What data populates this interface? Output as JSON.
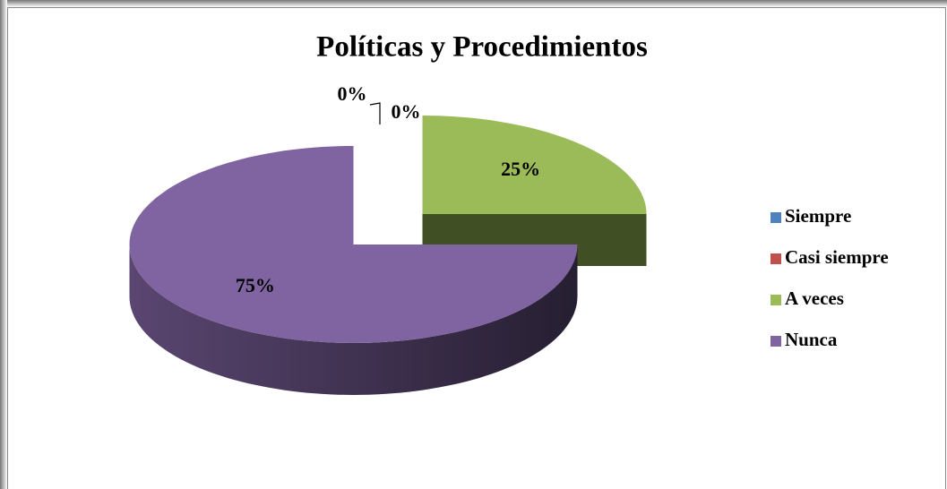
{
  "chart_data": {
    "type": "pie",
    "title": "Políticas y Procedimientos",
    "categories": [
      "Siempre",
      "Casi siempre",
      "A veces",
      "Nunca"
    ],
    "values": [
      0,
      0,
      25,
      75
    ],
    "value_labels": [
      "0%",
      "0%",
      "25%",
      "75%"
    ],
    "colors": [
      "#4f81bd",
      "#c0504d",
      "#9bbb59",
      "#8064a2"
    ],
    "legend": "right",
    "three_d": true
  }
}
